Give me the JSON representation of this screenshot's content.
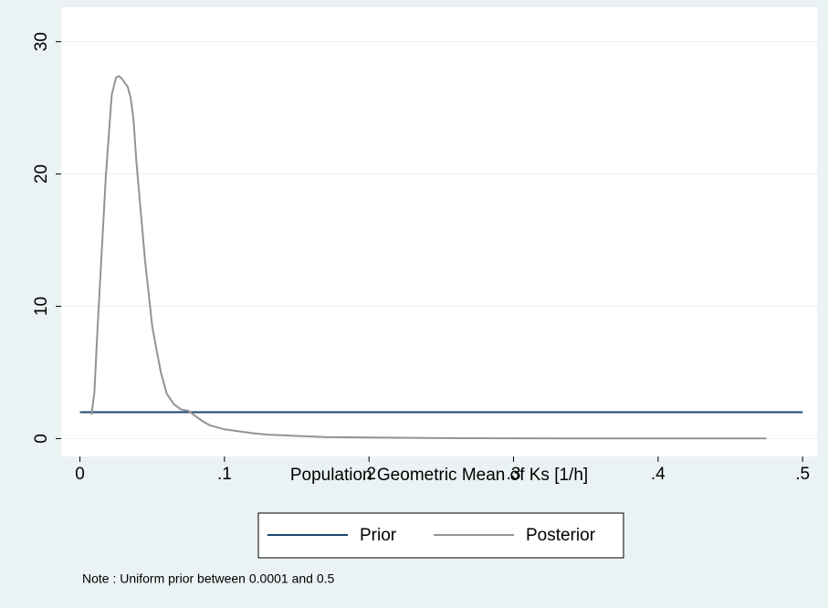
{
  "chart_data": {
    "type": "line",
    "xlabel": "Population Geometric Mean of Ks [1/h]",
    "note": "Note : Uniform prior between 0.0001 and 0.5",
    "xlim": [
      -0.013,
      0.51
    ],
    "ylim": [
      -1.35,
      32.6
    ],
    "xticks": [
      0,
      {
        "value": 0.1,
        "label": ".1"
      },
      {
        "value": 0.2,
        "label": ".2"
      },
      {
        "value": 0.3,
        "label": ".3"
      },
      {
        "value": 0.4,
        "label": ".4"
      },
      {
        "value": 0.5,
        "label": ".5"
      }
    ],
    "yticks": [
      0,
      10,
      20,
      30
    ],
    "grid": true,
    "series": [
      {
        "name": "Prior",
        "color": "#1a476f",
        "x": [
          0,
          0.5
        ],
        "values": [
          2,
          2
        ]
      },
      {
        "name": "Posterior",
        "color": "#939393",
        "x": [
          0.008,
          0.01,
          0.012,
          0.015,
          0.018,
          0.02,
          0.022,
          0.025,
          0.027,
          0.029,
          0.031,
          0.033,
          0.035,
          0.037,
          0.039,
          0.041,
          0.043,
          0.045,
          0.048,
          0.05,
          0.053,
          0.056,
          0.06,
          0.065,
          0.07,
          0.075,
          0.08,
          0.085,
          0.09,
          0.1,
          0.11,
          0.12,
          0.13,
          0.15,
          0.17,
          0.2,
          0.25,
          0.3,
          0.35,
          0.4,
          0.45,
          0.475
        ],
        "values": [
          1.8,
          3.5,
          8,
          14,
          20,
          23,
          26,
          27.3,
          27.4,
          27.2,
          26.9,
          26.6,
          25.8,
          24.2,
          21,
          18.5,
          16,
          13.5,
          10.5,
          8.5,
          6.7,
          5,
          3.4,
          2.6,
          2.2,
          2.1,
          1.7,
          1.3,
          1.0,
          0.7,
          0.55,
          0.4,
          0.3,
          0.2,
          0.12,
          0.08,
          0.04,
          0.02,
          0.01,
          0.01,
          0.01,
          0.01
        ]
      }
    ]
  }
}
